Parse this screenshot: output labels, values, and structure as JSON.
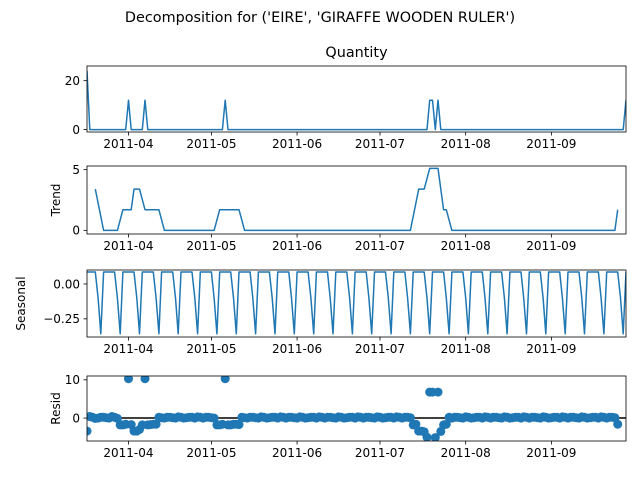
{
  "figure": {
    "suptitle": "Decomposition for ('EIRE', 'GIRAFFE WOODEN RULER')"
  },
  "chart_data": [
    {
      "type": "line",
      "title": "Quantity",
      "ylabel": "",
      "x_tick_labels": [
        "2011-04",
        "2011-05",
        "2011-06",
        "2011-07",
        "2011-08",
        "2011-09"
      ],
      "y_ticks": [
        0,
        20
      ],
      "ylim": [
        -1,
        26
      ],
      "color": "#1f77b4",
      "x_start": "2011-03-17",
      "x_end": "2011-09-28",
      "points": [
        [
          "2011-03-17",
          24
        ],
        [
          "2011-03-18",
          0
        ],
        [
          "2011-03-31",
          0
        ],
        [
          "2011-04-01",
          12
        ],
        [
          "2011-04-02",
          0
        ],
        [
          "2011-04-06",
          0
        ],
        [
          "2011-04-07",
          12
        ],
        [
          "2011-04-08",
          0
        ],
        [
          "2011-05-05",
          0
        ],
        [
          "2011-05-06",
          12
        ],
        [
          "2011-05-07",
          0
        ],
        [
          "2011-07-18",
          0
        ],
        [
          "2011-07-19",
          12
        ],
        [
          "2011-07-20",
          12
        ],
        [
          "2011-07-21",
          0
        ],
        [
          "2011-07-22",
          12
        ],
        [
          "2011-07-23",
          0
        ],
        [
          "2011-09-27",
          0
        ],
        [
          "2011-09-28",
          12
        ]
      ]
    },
    {
      "type": "line",
      "title": "",
      "ylabel": "Trend",
      "x_tick_labels": [
        "2011-04",
        "2011-05",
        "2011-06",
        "2011-07",
        "2011-08",
        "2011-09"
      ],
      "y_ticks": [
        0,
        5
      ],
      "ylim": [
        -0.3,
        5.3
      ],
      "color": "#1f77b4",
      "points": [
        [
          "2011-03-20",
          3.4
        ],
        [
          "2011-03-23",
          0
        ],
        [
          "2011-03-27",
          0
        ],
        [
          "2011-03-28",
          0
        ],
        [
          "2011-03-30",
          1.7
        ],
        [
          "2011-04-02",
          1.7
        ],
        [
          "2011-04-03",
          3.4
        ],
        [
          "2011-04-05",
          3.4
        ],
        [
          "2011-04-07",
          1.7
        ],
        [
          "2011-04-12",
          1.7
        ],
        [
          "2011-04-14",
          0
        ],
        [
          "2011-05-02",
          0
        ],
        [
          "2011-05-04",
          1.7
        ],
        [
          "2011-05-11",
          1.7
        ],
        [
          "2011-05-13",
          0
        ],
        [
          "2011-07-12",
          0
        ],
        [
          "2011-07-15",
          3.4
        ],
        [
          "2011-07-17",
          3.4
        ],
        [
          "2011-07-19",
          5.1
        ],
        [
          "2011-07-22",
          5.1
        ],
        [
          "2011-07-24",
          1.7
        ],
        [
          "2011-07-25",
          1.7
        ],
        [
          "2011-07-27",
          0
        ],
        [
          "2011-09-24",
          0
        ],
        [
          "2011-09-25",
          1.7
        ]
      ]
    },
    {
      "type": "line",
      "title": "",
      "ylabel": "Seasonal",
      "x_tick_labels": [
        "2011-04",
        "2011-05",
        "2011-06",
        "2011-07",
        "2011-08",
        "2011-09"
      ],
      "y_ticks": [
        0.0,
        -0.25
      ],
      "y_tick_labels": [
        "0.00",
        "−0.25"
      ],
      "ylim": [
        -0.38,
        0.1
      ],
      "color": "#1f77b4",
      "weekly_pattern": [
        0.086,
        0.086,
        0.086,
        0.086,
        -0.1,
        -0.357,
        0.086
      ]
    },
    {
      "type": "scatter",
      "title": "",
      "ylabel": "Resid",
      "x_tick_labels": [
        "2011-04",
        "2011-05",
        "2011-06",
        "2011-07",
        "2011-08",
        "2011-09"
      ],
      "y_ticks": [
        0,
        10
      ],
      "ylim": [
        -6,
        11
      ],
      "color": "#1f77b4",
      "baseline": 0,
      "points": [
        [
          "2011-03-17",
          -3.4
        ],
        [
          "2011-03-18",
          0.4
        ],
        [
          "2011-03-19",
          0.2
        ],
        [
          "2011-03-20",
          -0.1
        ],
        [
          "2011-03-21",
          0.0
        ],
        [
          "2011-03-22",
          0.2
        ],
        [
          "2011-03-23",
          0.2
        ],
        [
          "2011-03-24",
          0.1
        ],
        [
          "2011-03-25",
          0.0
        ],
        [
          "2011-03-26",
          0.4
        ],
        [
          "2011-03-27",
          0.2
        ],
        [
          "2011-03-28",
          -0.1
        ],
        [
          "2011-03-29",
          -1.8
        ],
        [
          "2011-03-30",
          -1.8
        ],
        [
          "2011-03-31",
          -1.6
        ],
        [
          "2011-04-01",
          10.3
        ],
        [
          "2011-04-02",
          -1.7
        ],
        [
          "2011-04-03",
          -3.4
        ],
        [
          "2011-04-04",
          -3.4
        ],
        [
          "2011-04-05",
          -3.0
        ],
        [
          "2011-04-06",
          -1.8
        ],
        [
          "2011-04-07",
          10.3
        ],
        [
          "2011-04-08",
          -1.8
        ],
        [
          "2011-04-09",
          -1.7
        ],
        [
          "2011-04-10",
          -1.6
        ],
        [
          "2011-04-11",
          -1.6
        ],
        [
          "2011-04-12",
          0.2
        ],
        [
          "2011-04-13",
          0.1
        ],
        [
          "2011-04-14",
          0.0
        ],
        [
          "2011-04-15",
          0.2
        ],
        [
          "2011-04-16",
          0.2
        ],
        [
          "2011-04-17",
          0.1
        ],
        [
          "2011-04-18",
          0.0
        ],
        [
          "2011-04-19",
          0.3
        ],
        [
          "2011-04-20",
          0.2
        ],
        [
          "2011-04-21",
          0.0
        ],
        [
          "2011-04-22",
          0.1
        ],
        [
          "2011-04-23",
          0.2
        ],
        [
          "2011-04-24",
          0.2
        ],
        [
          "2011-04-25",
          0.0
        ],
        [
          "2011-04-26",
          0.3
        ],
        [
          "2011-04-27",
          0.2
        ],
        [
          "2011-04-28",
          0.0
        ],
        [
          "2011-04-29",
          0.2
        ],
        [
          "2011-04-30",
          0.2
        ],
        [
          "2011-05-01",
          0.1
        ],
        [
          "2011-05-02",
          0.0
        ],
        [
          "2011-05-03",
          -1.8
        ],
        [
          "2011-05-04",
          -1.8
        ],
        [
          "2011-05-05",
          -1.6
        ],
        [
          "2011-05-06",
          10.3
        ],
        [
          "2011-05-07",
          -1.8
        ],
        [
          "2011-05-08",
          -1.8
        ],
        [
          "2011-05-09",
          -1.6
        ],
        [
          "2011-05-10",
          -1.6
        ],
        [
          "2011-05-11",
          -1.7
        ],
        [
          "2011-05-12",
          0.2
        ],
        [
          "2011-05-13",
          0.1
        ],
        [
          "2011-05-14",
          0.0
        ],
        [
          "2011-05-15",
          0.2
        ],
        [
          "2011-05-16",
          0.2
        ],
        [
          "2011-05-17",
          0.1
        ],
        [
          "2011-05-18",
          0.0
        ],
        [
          "2011-05-19",
          0.3
        ],
        [
          "2011-05-20",
          0.2
        ],
        [
          "2011-05-21",
          0.0
        ],
        [
          "2011-05-22",
          0.1
        ],
        [
          "2011-05-23",
          0.2
        ],
        [
          "2011-05-24",
          0.2
        ],
        [
          "2011-05-25",
          0.0
        ],
        [
          "2011-05-26",
          0.3
        ],
        [
          "2011-05-27",
          0.2
        ],
        [
          "2011-05-28",
          0.0
        ],
        [
          "2011-05-29",
          0.2
        ],
        [
          "2011-05-30",
          0.2
        ],
        [
          "2011-05-31",
          0.1
        ],
        [
          "2011-06-01",
          0.0
        ],
        [
          "2011-06-02",
          0.3
        ],
        [
          "2011-06-03",
          0.2
        ],
        [
          "2011-06-04",
          0.0
        ],
        [
          "2011-06-05",
          0.1
        ],
        [
          "2011-06-06",
          0.2
        ],
        [
          "2011-06-07",
          0.2
        ],
        [
          "2011-06-08",
          0.0
        ],
        [
          "2011-06-09",
          0.3
        ],
        [
          "2011-06-10",
          0.2
        ],
        [
          "2011-06-11",
          0.0
        ],
        [
          "2011-06-12",
          0.2
        ],
        [
          "2011-06-13",
          0.2
        ],
        [
          "2011-06-14",
          0.1
        ],
        [
          "2011-06-15",
          0.0
        ],
        [
          "2011-06-16",
          0.3
        ],
        [
          "2011-06-17",
          0.2
        ],
        [
          "2011-06-18",
          0.0
        ],
        [
          "2011-06-19",
          0.1
        ],
        [
          "2011-06-20",
          0.2
        ],
        [
          "2011-06-21",
          0.2
        ],
        [
          "2011-06-22",
          0.0
        ],
        [
          "2011-06-23",
          0.3
        ],
        [
          "2011-06-24",
          0.2
        ],
        [
          "2011-06-25",
          0.0
        ],
        [
          "2011-06-26",
          0.2
        ],
        [
          "2011-06-27",
          0.2
        ],
        [
          "2011-06-28",
          0.1
        ],
        [
          "2011-06-29",
          0.0
        ],
        [
          "2011-06-30",
          0.3
        ],
        [
          "2011-07-01",
          0.2
        ],
        [
          "2011-07-02",
          0.0
        ],
        [
          "2011-07-03",
          0.1
        ],
        [
          "2011-07-04",
          0.2
        ],
        [
          "2011-07-05",
          0.2
        ],
        [
          "2011-07-06",
          0.0
        ],
        [
          "2011-07-07",
          0.3
        ],
        [
          "2011-07-08",
          0.2
        ],
        [
          "2011-07-09",
          0.0
        ],
        [
          "2011-07-10",
          0.2
        ],
        [
          "2011-07-11",
          0.2
        ],
        [
          "2011-07-12",
          0.1
        ],
        [
          "2011-07-13",
          -1.8
        ],
        [
          "2011-07-14",
          -1.6
        ],
        [
          "2011-07-15",
          -3.4
        ],
        [
          "2011-07-16",
          -3.4
        ],
        [
          "2011-07-17",
          -3.6
        ],
        [
          "2011-07-18",
          -5.0
        ],
        [
          "2011-07-19",
          6.8
        ],
        [
          "2011-07-20",
          6.8
        ],
        [
          "2011-07-21",
          -5.1
        ],
        [
          "2011-07-22",
          6.8
        ],
        [
          "2011-07-23",
          -3.5
        ],
        [
          "2011-07-24",
          -1.8
        ],
        [
          "2011-07-25",
          -1.6
        ],
        [
          "2011-07-26",
          0.2
        ],
        [
          "2011-07-27",
          0.0
        ],
        [
          "2011-07-28",
          0.2
        ],
        [
          "2011-07-29",
          0.2
        ],
        [
          "2011-07-30",
          0.1
        ],
        [
          "2011-07-31",
          0.0
        ],
        [
          "2011-08-01",
          0.3
        ],
        [
          "2011-08-02",
          0.2
        ],
        [
          "2011-08-03",
          0.0
        ],
        [
          "2011-08-04",
          0.1
        ],
        [
          "2011-08-05",
          0.2
        ],
        [
          "2011-08-06",
          0.2
        ],
        [
          "2011-08-07",
          0.0
        ],
        [
          "2011-08-08",
          0.3
        ],
        [
          "2011-08-09",
          0.2
        ],
        [
          "2011-08-10",
          0.0
        ],
        [
          "2011-08-11",
          0.2
        ],
        [
          "2011-08-12",
          0.2
        ],
        [
          "2011-08-13",
          0.1
        ],
        [
          "2011-08-14",
          0.0
        ],
        [
          "2011-08-15",
          0.3
        ],
        [
          "2011-08-16",
          0.2
        ],
        [
          "2011-08-17",
          0.0
        ],
        [
          "2011-08-18",
          0.1
        ],
        [
          "2011-08-19",
          0.2
        ],
        [
          "2011-08-20",
          0.2
        ],
        [
          "2011-08-21",
          0.0
        ],
        [
          "2011-08-22",
          0.3
        ],
        [
          "2011-08-23",
          0.2
        ],
        [
          "2011-08-24",
          0.0
        ],
        [
          "2011-08-25",
          0.2
        ],
        [
          "2011-08-26",
          0.2
        ],
        [
          "2011-08-27",
          0.1
        ],
        [
          "2011-08-28",
          0.0
        ],
        [
          "2011-08-29",
          0.3
        ],
        [
          "2011-08-30",
          0.2
        ],
        [
          "2011-08-31",
          0.0
        ],
        [
          "2011-09-01",
          0.1
        ],
        [
          "2011-09-02",
          0.2
        ],
        [
          "2011-09-03",
          0.2
        ],
        [
          "2011-09-04",
          0.0
        ],
        [
          "2011-09-05",
          0.3
        ],
        [
          "2011-09-06",
          0.2
        ],
        [
          "2011-09-07",
          0.0
        ],
        [
          "2011-09-08",
          0.2
        ],
        [
          "2011-09-09",
          0.2
        ],
        [
          "2011-09-10",
          0.1
        ],
        [
          "2011-09-11",
          0.0
        ],
        [
          "2011-09-12",
          0.3
        ],
        [
          "2011-09-13",
          0.2
        ],
        [
          "2011-09-14",
          0.0
        ],
        [
          "2011-09-15",
          0.1
        ],
        [
          "2011-09-16",
          0.2
        ],
        [
          "2011-09-17",
          0.2
        ],
        [
          "2011-09-18",
          0.0
        ],
        [
          "2011-09-19",
          0.3
        ],
        [
          "2011-09-20",
          0.2
        ],
        [
          "2011-09-21",
          0.0
        ],
        [
          "2011-09-22",
          0.2
        ],
        [
          "2011-09-23",
          0.2
        ],
        [
          "2011-09-24",
          0.1
        ],
        [
          "2011-09-25",
          -1.6
        ]
      ]
    }
  ]
}
